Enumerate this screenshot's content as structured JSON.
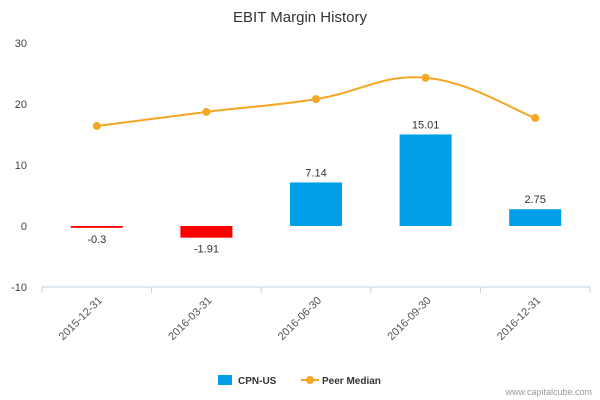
{
  "chart_data": {
    "type": "bar",
    "title": "EBIT Margin History",
    "categories": [
      "2015-12-31",
      "2016-03-31",
      "2016-06-30",
      "2016-09-30",
      "2016-12-31"
    ],
    "ylim": [
      -10,
      30
    ],
    "yticks": [
      -10,
      0,
      10,
      20,
      30
    ],
    "grid": false,
    "legend_position": "bottom-center",
    "series": [
      {
        "name": "CPN-US",
        "kind": "bar",
        "values": [
          -0.3,
          -1.91,
          7.14,
          15.01,
          2.75
        ],
        "labels": [
          "-0.3",
          "-1.91",
          "7.14",
          "15.01",
          "2.75"
        ],
        "color": "#00a0e8",
        "negative_color": "#ff0000"
      },
      {
        "name": "Peer Median",
        "kind": "line",
        "values": [
          16.4,
          18.7,
          20.8,
          24.3,
          17.7
        ],
        "color": "#f5a623"
      }
    ]
  },
  "credit": "www.capitalcube.com"
}
